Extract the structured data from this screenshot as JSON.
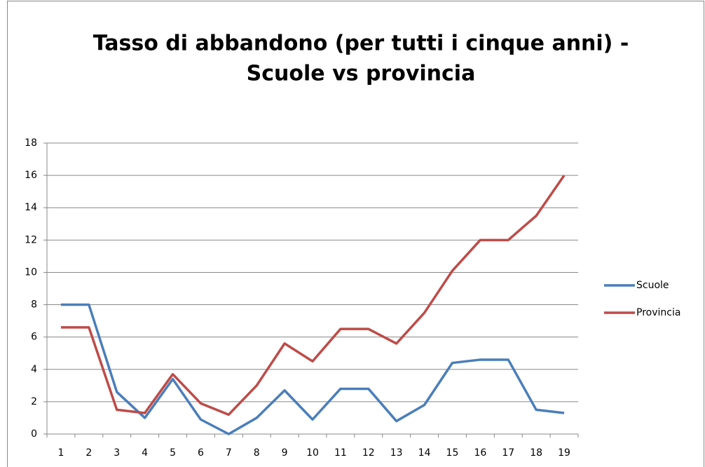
{
  "chart_data": {
    "type": "line",
    "title": [
      "Tasso di abbandono (per tutti i cinque anni) -",
      "Scuole vs provincia"
    ],
    "categories": [
      "1",
      "2",
      "3",
      "4",
      "5",
      "6",
      "7",
      "8",
      "9",
      "10",
      "11",
      "12",
      "13",
      "14",
      "15",
      "16",
      "17",
      "18",
      "19"
    ],
    "series": [
      {
        "name": "Scuole",
        "color": "#4a7ebb",
        "values": [
          8,
          8,
          2.6,
          1,
          3.4,
          0.9,
          0,
          1,
          2.7,
          0.9,
          2.8,
          2.8,
          0.8,
          1.8,
          4.4,
          4.6,
          4.6,
          1.5,
          1.3
        ]
      },
      {
        "name": "Provincia",
        "color": "#be4b48",
        "values": [
          6.6,
          6.6,
          1.5,
          1.3,
          3.7,
          1.9,
          1.2,
          3,
          5.6,
          4.5,
          6.5,
          6.5,
          5.6,
          7.5,
          10.1,
          12,
          12,
          13.5,
          16
        ]
      }
    ],
    "ylim": [
      0,
      18
    ],
    "yticks": [
      0,
      2,
      4,
      6,
      8,
      10,
      12,
      14,
      16,
      18
    ],
    "grid": true,
    "legend": "right"
  }
}
